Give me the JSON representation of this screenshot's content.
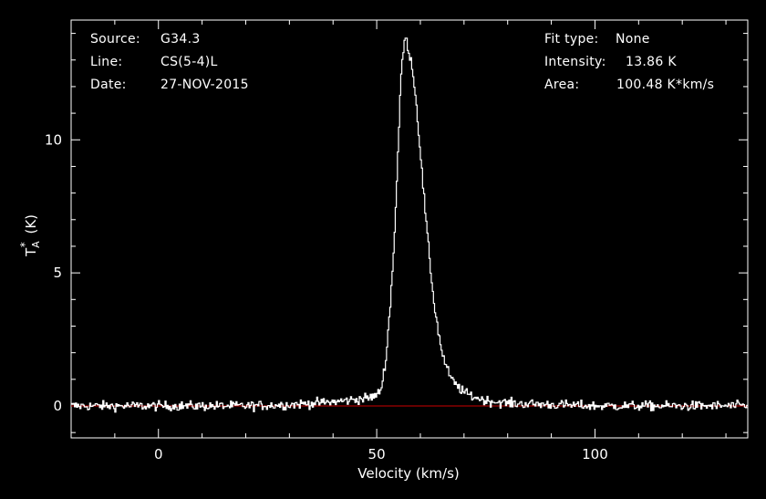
{
  "header": {
    "source_label": "Source:",
    "source_value": "G34.3",
    "line_label": "Line:",
    "line_value": "CS(5-4)L",
    "date_label": "Date:",
    "date_value": "27-NOV-2015",
    "fit_label": "Fit type:",
    "fit_value": "None",
    "intensity_label": "Intensity:",
    "intensity_value": "13.86 K",
    "area_label": "Area:",
    "area_value": "100.48 K*km/s"
  },
  "chart_data": {
    "type": "line",
    "title": "",
    "xlabel": "Velocity (km/s)",
    "ylabel": "T*A (K)",
    "xlim": [
      -20,
      135
    ],
    "ylim": [
      -1.2,
      14.5
    ],
    "x_ticks": [
      0,
      50,
      100
    ],
    "y_ticks": [
      0,
      5,
      10
    ],
    "grid": false,
    "baseline": {
      "y": 0,
      "color": "#cc0000"
    },
    "line_color": "#ffffff",
    "background": "#000000",
    "series": [
      {
        "x": [
          -20,
          -10,
          0,
          10,
          20,
          30,
          40,
          48,
          50,
          51,
          52,
          53,
          54,
          55,
          55.5,
          56,
          56.5,
          57,
          58,
          59,
          60,
          61,
          62,
          63,
          64,
          65,
          66,
          67,
          68,
          70,
          72,
          75,
          80,
          90,
          100,
          110,
          120,
          135
        ],
        "y": [
          0,
          0,
          0,
          0,
          0,
          0.05,
          0.15,
          0.3,
          0.4,
          0.7,
          1.8,
          3.8,
          6.5,
          10.5,
          12.5,
          13.4,
          13.86,
          13.5,
          12.8,
          11.3,
          9.3,
          7.3,
          5.5,
          3.9,
          2.8,
          1.9,
          1.4,
          1.0,
          0.8,
          0.5,
          0.35,
          0.2,
          0.1,
          0.05,
          0.0,
          0.0,
          0.0,
          0.0
        ]
      }
    ]
  }
}
